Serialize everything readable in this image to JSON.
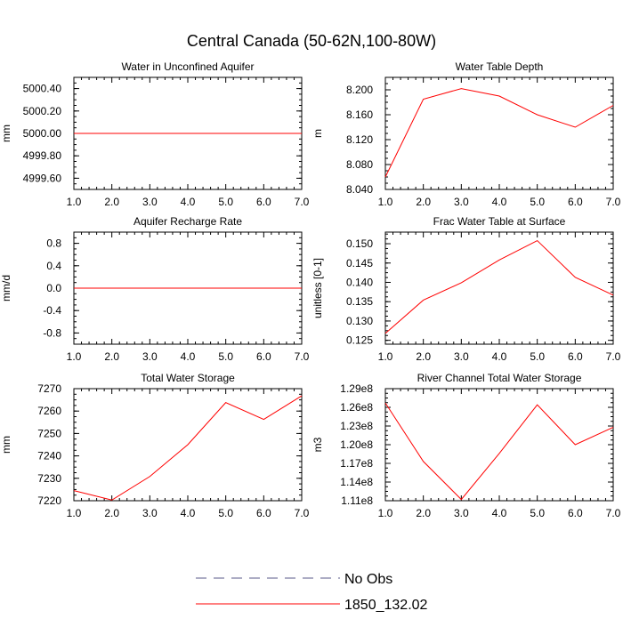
{
  "title": "Central Canada (50-62N,100-80W)",
  "colors": {
    "series": "#ff0000",
    "obs": "#5a5a8a",
    "axis": "#000000"
  },
  "legend": {
    "placement": "bottom-center",
    "items": [
      {
        "label": "No Obs",
        "style": "dashed",
        "color": "#5a5a8a"
      },
      {
        "label": "1850_132.02",
        "style": "solid",
        "color": "#ff0000"
      }
    ]
  },
  "chart_data": [
    {
      "type": "line",
      "title": "Water in Unconfined Aquifer",
      "ylabel": "mm",
      "xlim": [
        1,
        7
      ],
      "ylim": [
        4999.5,
        5000.5
      ],
      "x_ticks": [
        1,
        2,
        3,
        4,
        5,
        6,
        7
      ],
      "x_tick_labels": [
        "1.0",
        "2.0",
        "3.0",
        "4.0",
        "5.0",
        "6.0",
        "7.0"
      ],
      "y_ticks": [
        4999.6,
        4999.8,
        5000.0,
        5000.2,
        5000.4
      ],
      "y_tick_labels": [
        "4999.60",
        "4999.80",
        "5000.00",
        "5000.20",
        "5000.40"
      ],
      "series": [
        {
          "x": [
            1,
            2,
            3,
            4,
            5,
            6,
            7
          ],
          "values": [
            5000,
            5000,
            5000,
            5000,
            5000,
            5000,
            5000
          ]
        }
      ]
    },
    {
      "type": "line",
      "title": "Water Table Depth",
      "ylabel": "m",
      "xlim": [
        1,
        7
      ],
      "ylim": [
        8.04,
        8.22
      ],
      "x_ticks": [
        1,
        2,
        3,
        4,
        5,
        6,
        7
      ],
      "x_tick_labels": [
        "1.0",
        "2.0",
        "3.0",
        "4.0",
        "5.0",
        "6.0",
        "7.0"
      ],
      "y_ticks": [
        8.04,
        8.08,
        8.12,
        8.16,
        8.2
      ],
      "y_tick_labels": [
        "8.040",
        "8.080",
        "8.120",
        "8.160",
        "8.200"
      ],
      "series": [
        {
          "x": [
            1,
            2,
            3,
            4,
            5,
            6,
            7
          ],
          "values": [
            8.06,
            8.185,
            8.202,
            8.19,
            8.16,
            8.14,
            8.175
          ]
        }
      ]
    },
    {
      "type": "line",
      "title": "Aquifer Recharge Rate",
      "ylabel": "mm/d",
      "xlim": [
        1,
        7
      ],
      "ylim": [
        -1,
        1
      ],
      "x_ticks": [
        1,
        2,
        3,
        4,
        5,
        6,
        7
      ],
      "x_tick_labels": [
        "1.0",
        "2.0",
        "3.0",
        "4.0",
        "5.0",
        "6.0",
        "7.0"
      ],
      "y_ticks": [
        -0.8,
        -0.4,
        0,
        0.4,
        0.8
      ],
      "y_tick_labels": [
        "-0.8",
        "-0.4",
        "0.0",
        "0.4",
        "0.8"
      ],
      "series": [
        {
          "x": [
            1,
            2,
            3,
            4,
            5,
            6,
            7
          ],
          "values": [
            0,
            0,
            0,
            0,
            0,
            0,
            0
          ]
        }
      ]
    },
    {
      "type": "line",
      "title": "Frac Water Table at Surface",
      "ylabel": "unitless [0-1]",
      "xlim": [
        1,
        7
      ],
      "ylim": [
        0.124,
        0.153
      ],
      "x_ticks": [
        1,
        2,
        3,
        4,
        5,
        6,
        7
      ],
      "x_tick_labels": [
        "1.0",
        "2.0",
        "3.0",
        "4.0",
        "5.0",
        "6.0",
        "7.0"
      ],
      "y_ticks": [
        0.125,
        0.13,
        0.135,
        0.14,
        0.145,
        0.15
      ],
      "y_tick_labels": [
        "0.125",
        "0.130",
        "0.135",
        "0.140",
        "0.145",
        "0.150"
      ],
      "series": [
        {
          "x": [
            1,
            2,
            3,
            4,
            5,
            6,
            7
          ],
          "values": [
            0.1268,
            0.1354,
            0.1399,
            0.1458,
            0.1508,
            0.1413,
            0.1367
          ]
        }
      ]
    },
    {
      "type": "line",
      "title": "Total Water Storage",
      "ylabel": "mm",
      "xlim": [
        1,
        7
      ],
      "ylim": [
        7220,
        7270
      ],
      "x_ticks": [
        1,
        2,
        3,
        4,
        5,
        6,
        7
      ],
      "x_tick_labels": [
        "1.0",
        "2.0",
        "3.0",
        "4.0",
        "5.0",
        "6.0",
        "7.0"
      ],
      "y_ticks": [
        7220,
        7230,
        7240,
        7250,
        7260,
        7270
      ],
      "y_tick_labels": [
        "7220",
        "7230",
        "7240",
        "7250",
        "7260",
        "7270"
      ],
      "series": [
        {
          "x": [
            1,
            2,
            3,
            4,
            5,
            6,
            7
          ],
          "values": [
            7224.5,
            7220.3,
            7230.8,
            7245,
            7263.8,
            7256.3,
            7266.8
          ]
        }
      ]
    },
    {
      "type": "line",
      "title": "River Channel Total Water Storage",
      "ylabel": "m3",
      "xlim": [
        1,
        7
      ],
      "ylim": [
        111000000.0,
        129000000.0
      ],
      "x_ticks": [
        1,
        2,
        3,
        4,
        5,
        6,
        7
      ],
      "x_tick_labels": [
        "1.0",
        "2.0",
        "3.0",
        "4.0",
        "5.0",
        "6.0",
        "7.0"
      ],
      "y_ticks": [
        111000000.0,
        114000000.0,
        117000000.0,
        120000000.0,
        123000000.0,
        126000000.0,
        129000000.0
      ],
      "y_tick_labels": [
        "1.11e8",
        "1.14e8",
        "1.17e8",
        "1.20e8",
        "1.23e8",
        "1.26e8",
        "1.29e8"
      ],
      "series": [
        {
          "x": [
            1,
            2,
            3,
            4,
            5,
            6,
            7
          ],
          "values": [
            126700000.0,
            117300000.0,
            111200000.0,
            118600000.0,
            126400000.0,
            120000000.0,
            122800000.0
          ]
        }
      ]
    }
  ]
}
